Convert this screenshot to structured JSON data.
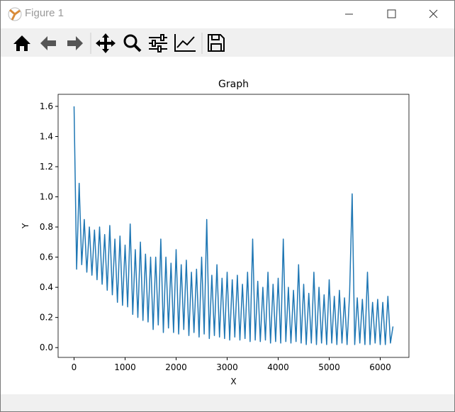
{
  "window_title": "Figure 1",
  "chart_data": {
    "type": "line",
    "title": "Graph",
    "x_label": "X",
    "y_label": "Y",
    "xlim": [
      -312.5,
      6562.5
    ],
    "xticks": [
      0,
      1000,
      2000,
      3000,
      4000,
      5000,
      6000
    ],
    "ylim": [
      -0.065,
      1.68
    ],
    "yticks": [
      {
        "value": 0,
        "label": "0.0"
      },
      0.2,
      0.4,
      0.6,
      0.8,
      {
        "value": 1,
        "label": "1.0"
      },
      1.2,
      1.4,
      1.6
    ],
    "series": [
      {
        "color": "#1f77b4",
        "x": [
          0,
          50,
          100,
          150,
          200,
          250,
          300,
          350,
          400,
          450,
          500,
          550,
          600,
          650,
          700,
          750,
          800,
          850,
          900,
          950,
          1000,
          1050,
          1100,
          1150,
          1200,
          1250,
          1300,
          1350,
          1400,
          1450,
          1500,
          1550,
          1600,
          1650,
          1700,
          1750,
          1800,
          1850,
          1900,
          1950,
          2000,
          2050,
          2100,
          2150,
          2200,
          2250,
          2300,
          2350,
          2400,
          2450,
          2500,
          2550,
          2600,
          2650,
          2700,
          2750,
          2800,
          2850,
          2900,
          2950,
          3000,
          3050,
          3100,
          3150,
          3200,
          3250,
          3300,
          3350,
          3400,
          3450,
          3500,
          3550,
          3600,
          3650,
          3700,
          3750,
          3800,
          3850,
          3900,
          3950,
          4000,
          4050,
          4100,
          4150,
          4200,
          4250,
          4300,
          4350,
          4400,
          4450,
          4500,
          4550,
          4600,
          4650,
          4700,
          4750,
          4800,
          4850,
          4900,
          4950,
          5000,
          5050,
          5100,
          5150,
          5200,
          5250,
          5300,
          5350,
          5400,
          5450,
          5500,
          5550,
          5600,
          5650,
          5700,
          5750,
          5800,
          5850,
          5900,
          5950,
          6000,
          6050,
          6100,
          6150,
          6200,
          6250
        ],
        "values": [
          1.6,
          0.52,
          1.09,
          0.55,
          0.85,
          0.5,
          0.8,
          0.48,
          0.78,
          0.45,
          0.8,
          0.42,
          0.75,
          0.38,
          0.81,
          0.35,
          0.72,
          0.3,
          0.74,
          0.28,
          0.68,
          0.27,
          0.82,
          0.22,
          0.65,
          0.2,
          0.7,
          0.18,
          0.62,
          0.17,
          0.6,
          0.12,
          0.6,
          0.15,
          0.72,
          0.1,
          0.6,
          0.13,
          0.56,
          0.1,
          0.65,
          0.09,
          0.55,
          0.12,
          0.58,
          0.08,
          0.5,
          0.1,
          0.52,
          0.07,
          0.6,
          0.09,
          0.85,
          0.06,
          0.48,
          0.08,
          0.55,
          0.07,
          0.46,
          0.06,
          0.5,
          0.05,
          0.45,
          0.07,
          0.48,
          0.05,
          0.42,
          0.06,
          0.5,
          0.04,
          0.72,
          0.05,
          0.44,
          0.04,
          0.4,
          0.05,
          0.5,
          0.03,
          0.42,
          0.04,
          0.46,
          0.03,
          0.72,
          0.04,
          0.4,
          0.03,
          0.38,
          0.04,
          0.55,
          0.03,
          0.42,
          0.02,
          0.36,
          0.03,
          0.5,
          0.02,
          0.4,
          0.03,
          0.35,
          0.02,
          0.45,
          0.03,
          0.34,
          0.02,
          0.38,
          0.03,
          0.33,
          0.02,
          0.36,
          1.02,
          0.02,
          0.33,
          0.03,
          0.32,
          0.02,
          0.5,
          0.02,
          0.3,
          0.03,
          0.32,
          0.02,
          0.3,
          0.02,
          0.34,
          0.03,
          0.14
        ]
      }
    ]
  }
}
